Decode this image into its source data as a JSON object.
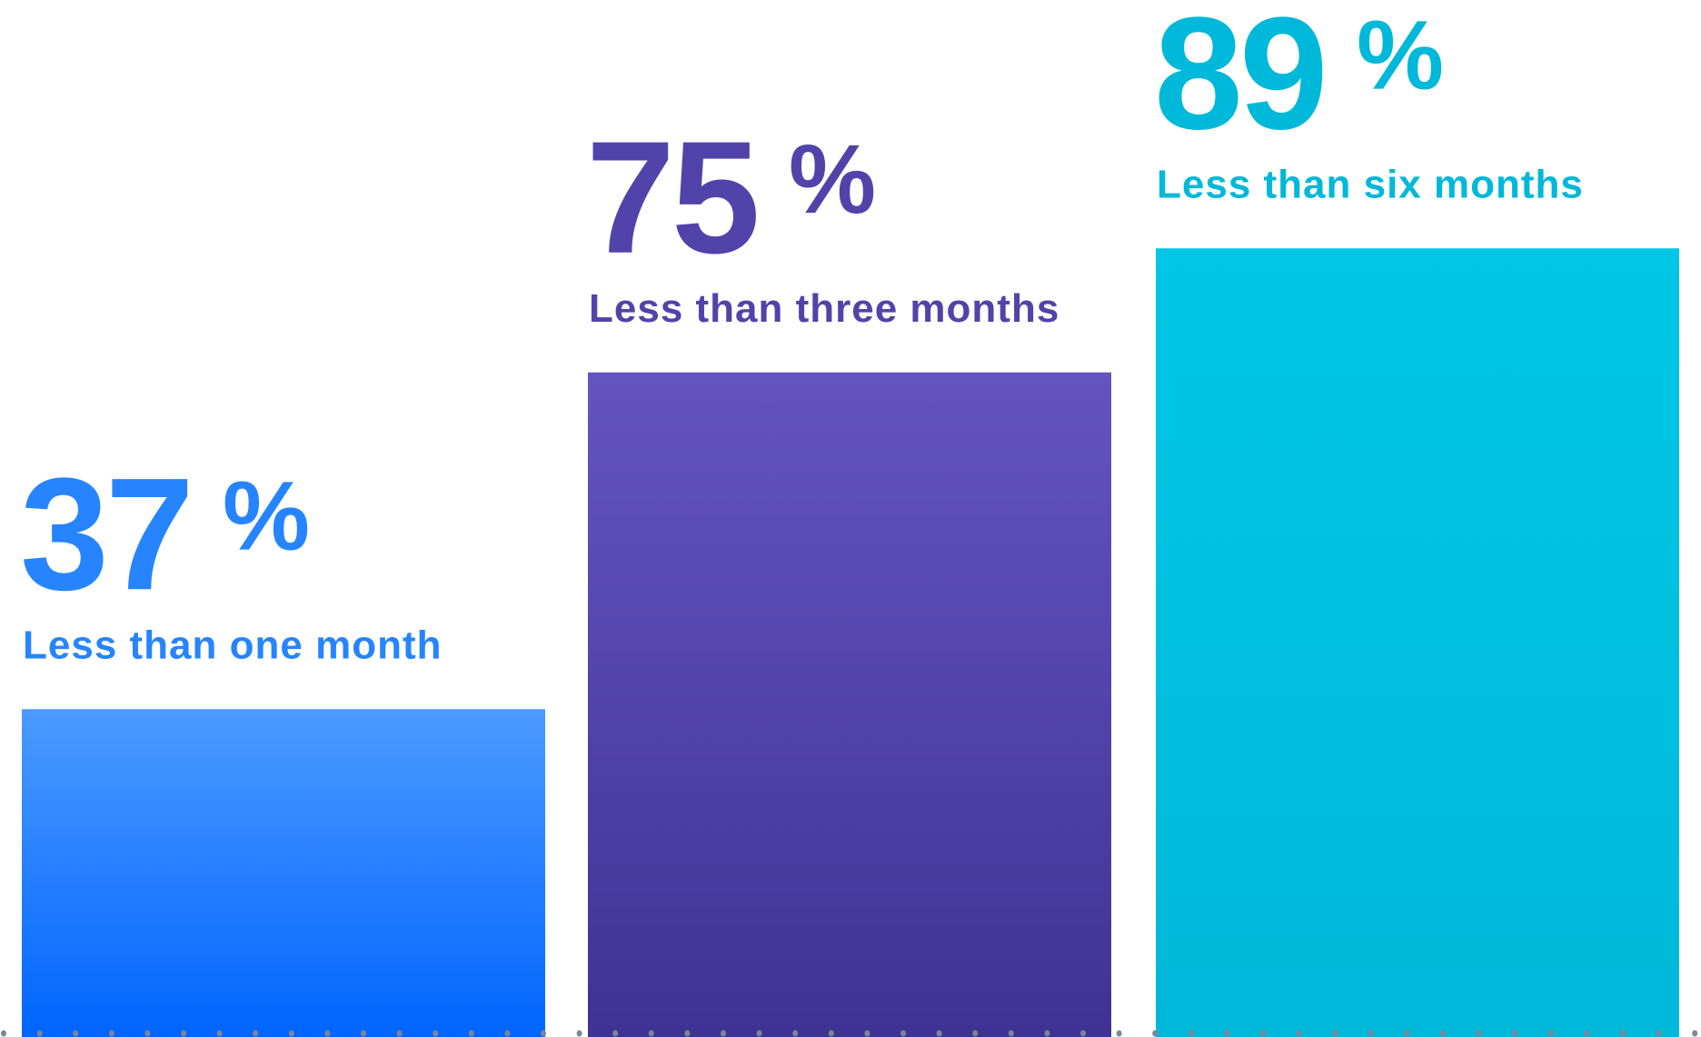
{
  "chart_data": {
    "type": "bar",
    "categories": [
      "Less than one month",
      "Less than three months",
      "Less than six months"
    ],
    "values": [
      37,
      75,
      89
    ],
    "value_labels": [
      "37",
      "75",
      "89"
    ],
    "unit": "%",
    "ylim": [
      0,
      100
    ],
    "grid": false,
    "legend": "none",
    "colors": [
      {
        "text": "#2684FF",
        "top": "#4C9AFF",
        "bottom": "#0065FF"
      },
      {
        "text": "#5243AA",
        "top": "#6554C0",
        "bottom": "#403294"
      },
      {
        "text": "#00B8D9",
        "top": "#00C7E6",
        "bottom": "#00B8D9"
      }
    ],
    "baseline_dot_color": "#7A869A"
  }
}
